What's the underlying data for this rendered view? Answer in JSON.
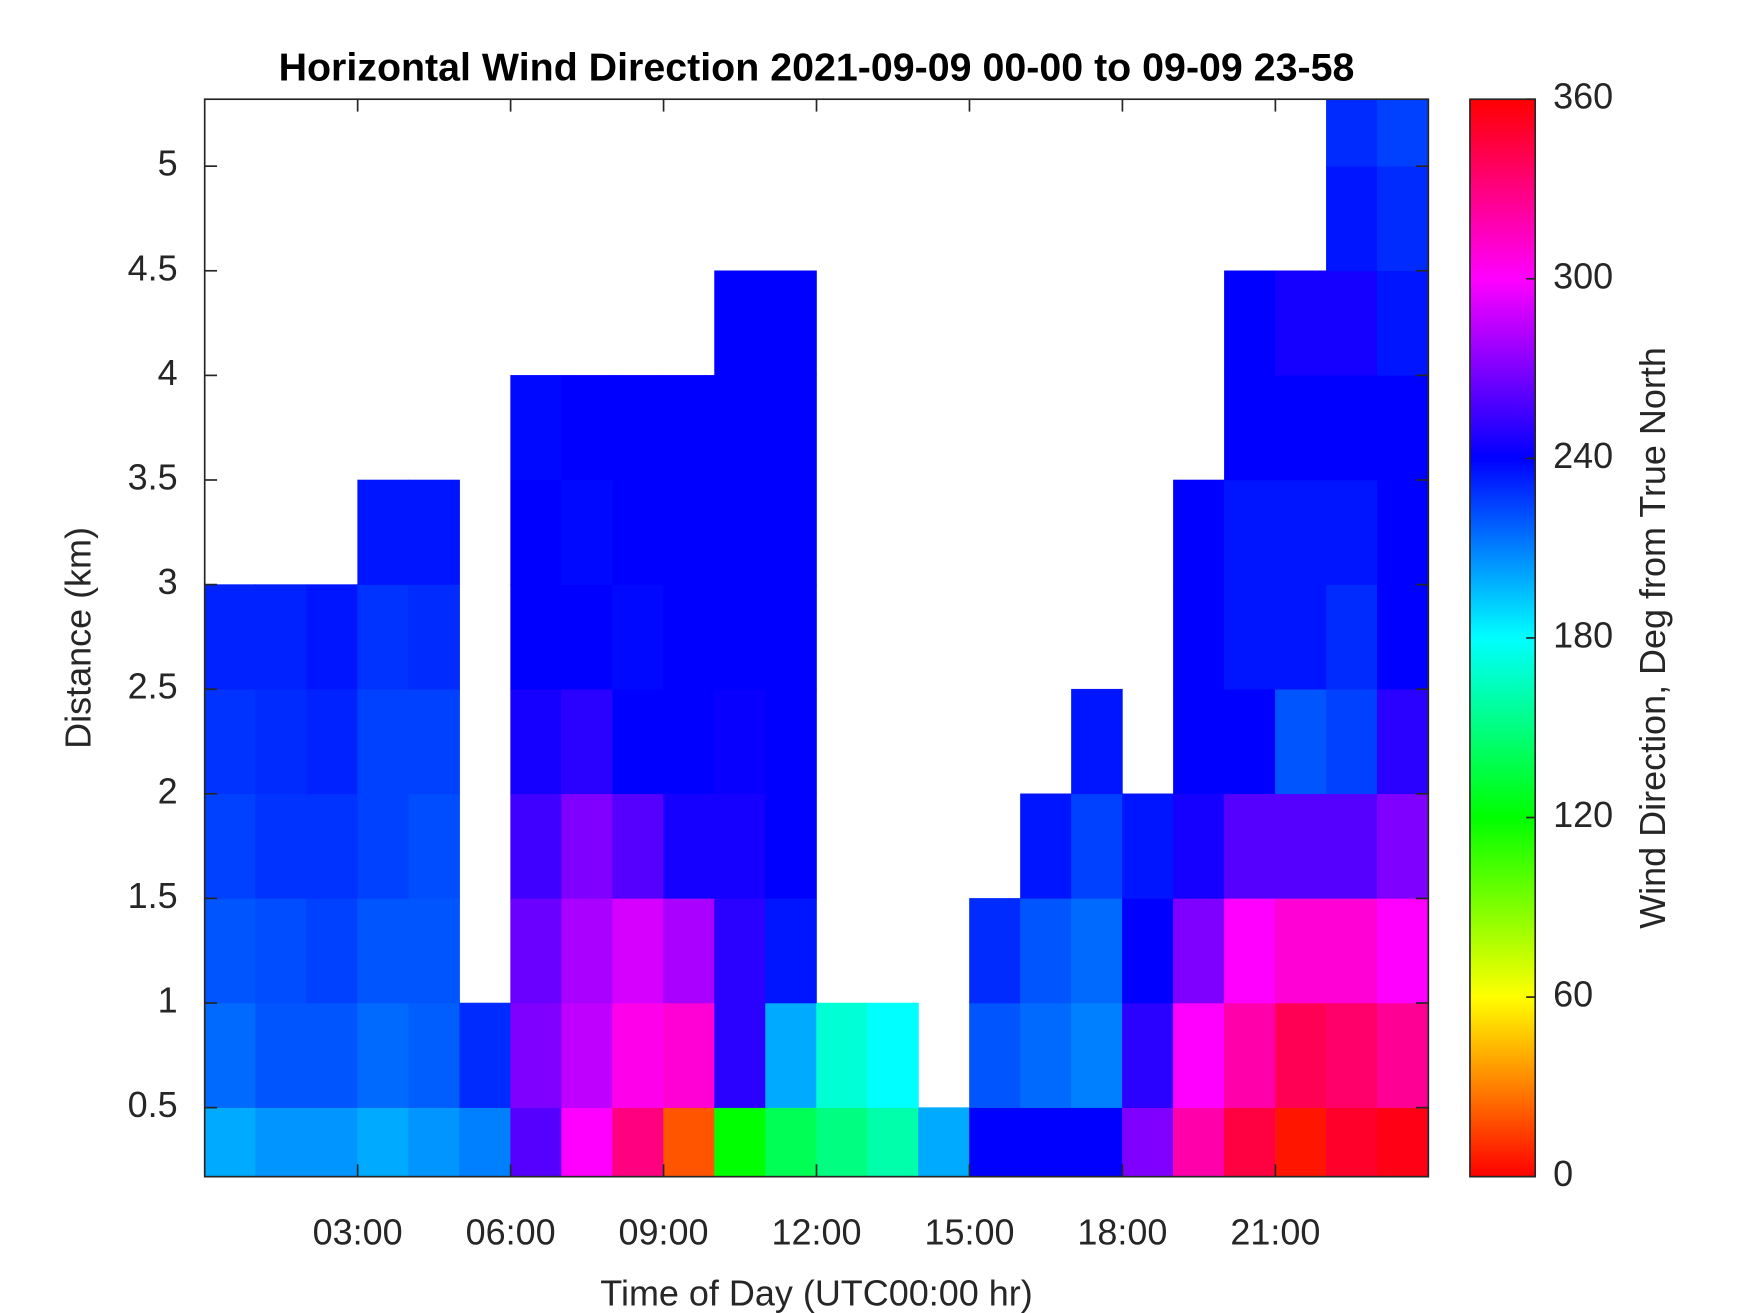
{
  "chart_data": {
    "type": "heatmap",
    "title": "Horizontal Wind Direction 2021-09-09 00-00 to 09-09 23-58",
    "x_label": "Time of Day (UTC00:00 hr)",
    "y_label": "Distance (km)",
    "colormap": "hsv",
    "xlim": [
      0,
      24
    ],
    "ylim": [
      0.17,
      5.32
    ],
    "xticks": [
      {
        "value": 3,
        "label": "03:00"
      },
      {
        "value": 6,
        "label": "06:00"
      },
      {
        "value": 9,
        "label": "09:00"
      },
      {
        "value": 12,
        "label": "12:00"
      },
      {
        "value": 15,
        "label": "15:00"
      },
      {
        "value": 18,
        "label": "18:00"
      },
      {
        "value": 21,
        "label": "21:00"
      }
    ],
    "yticks": [
      0.5,
      1,
      1.5,
      2,
      2.5,
      3,
      3.5,
      4,
      4.5,
      5
    ],
    "x_bins": [
      0,
      1,
      2,
      3,
      4,
      5,
      6,
      7,
      8,
      9,
      10,
      11,
      12,
      13,
      14,
      15,
      16,
      17,
      18,
      19,
      20,
      21,
      22,
      23,
      24
    ],
    "y_bins": [
      0.17,
      0.5,
      1,
      1.5,
      2,
      2.5,
      3,
      3.5,
      4,
      4.5,
      5,
      5.32
    ],
    "values": [
      [
        200,
        205,
        205,
        200,
        205,
        210,
        260,
        300,
        330,
        20,
        120,
        140,
        150,
        160,
        200,
        240,
        240,
        240,
        270,
        320,
        345,
        5,
        350,
        355
      ],
      [
        215,
        220,
        220,
        215,
        218,
        230,
        270,
        285,
        305,
        310,
        250,
        200,
        170,
        180,
        null,
        220,
        215,
        210,
        250,
        300,
        320,
        340,
        335,
        325
      ],
      [
        220,
        222,
        225,
        220,
        220,
        null,
        265,
        280,
        290,
        280,
        250,
        235,
        null,
        null,
        null,
        230,
        220,
        215,
        240,
        270,
        300,
        310,
        310,
        300
      ],
      [
        225,
        228,
        228,
        225,
        222,
        null,
        255,
        270,
        260,
        245,
        245,
        240,
        null,
        null,
        null,
        null,
        235,
        225,
        235,
        245,
        260,
        260,
        260,
        270
      ],
      [
        228,
        230,
        232,
        225,
        225,
        null,
        245,
        250,
        240,
        240,
        242,
        240,
        null,
        null,
        null,
        null,
        null,
        235,
        null,
        240,
        240,
        220,
        225,
        250
      ],
      [
        232,
        232,
        235,
        228,
        230,
        null,
        240,
        240,
        238,
        240,
        240,
        240,
        null,
        null,
        null,
        null,
        null,
        null,
        null,
        240,
        235,
        235,
        230,
        240
      ],
      [
        null,
        null,
        null,
        235,
        235,
        null,
        240,
        238,
        240,
        240,
        240,
        240,
        null,
        null,
        null,
        null,
        null,
        null,
        null,
        240,
        235,
        235,
        235,
        240
      ],
      [
        null,
        null,
        null,
        null,
        null,
        null,
        238,
        240,
        240,
        240,
        240,
        240,
        null,
        null,
        null,
        null,
        null,
        null,
        null,
        null,
        240,
        240,
        240,
        240
      ],
      [
        null,
        null,
        null,
        null,
        null,
        null,
        null,
        null,
        null,
        null,
        240,
        240,
        null,
        null,
        null,
        null,
        null,
        null,
        null,
        null,
        240,
        245,
        245,
        235
      ],
      [
        null,
        null,
        null,
        null,
        null,
        null,
        null,
        null,
        null,
        null,
        null,
        null,
        null,
        null,
        null,
        null,
        null,
        null,
        null,
        null,
        null,
        null,
        235,
        230
      ],
      [
        null,
        null,
        null,
        null,
        null,
        null,
        null,
        null,
        null,
        null,
        null,
        null,
        null,
        null,
        null,
        null,
        null,
        null,
        null,
        null,
        null,
        null,
        230,
        225
      ]
    ],
    "colorbar": {
      "label": "Wind Direction, Deg from True North",
      "lim": [
        0,
        360
      ],
      "ticks": [
        0,
        60,
        120,
        180,
        240,
        300,
        360
      ]
    }
  }
}
